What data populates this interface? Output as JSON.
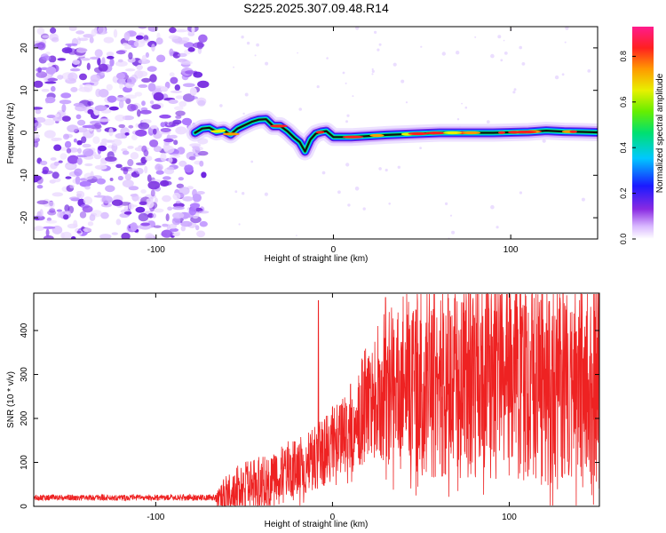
{
  "title": "S225.2025.307.09.48.R14",
  "colors": {
    "snr_line": "#ee2222",
    "scatter_purple": "#7a2fe0",
    "axis": "#000000"
  },
  "chart_data": [
    {
      "type": "heatmap",
      "name": "spectrogram",
      "xlabel": "Height of straight line (km)",
      "ylabel": "Frequency (Hz)",
      "xlim": [
        -169,
        149
      ],
      "ylim": [
        -25,
        25
      ],
      "xticks": [
        -100,
        0,
        100
      ],
      "xtick_labels": [
        "-100",
        "0",
        "100"
      ],
      "yticks": [
        -20,
        -10,
        0,
        10,
        20
      ],
      "ytick_labels": [
        "-20",
        "-10",
        "0",
        "10",
        "20"
      ],
      "noise_region_km": [
        -169,
        -75
      ],
      "ridge": {
        "x": [
          -78,
          -74,
          -70,
          -66,
          -62,
          -58,
          -54,
          -50,
          -46,
          -42,
          -38,
          -34,
          -30,
          -26,
          -22,
          -19,
          -16,
          -13,
          -10,
          -7,
          -4,
          0,
          10,
          30,
          60,
          90,
          110,
          120,
          130,
          140,
          149
        ],
        "freq": [
          0,
          1,
          1.2,
          0.3,
          0.6,
          -0.4,
          1.0,
          1.8,
          2.6,
          3.1,
          3.2,
          1.6,
          1.6,
          0.4,
          -1.2,
          -2.2,
          -4.4,
          -1.6,
          -0.2,
          0.2,
          0.4,
          -1.0,
          -1.0,
          -0.5,
          0.0,
          0.0,
          0.2,
          0.5,
          0.3,
          0.2,
          0.1
        ]
      },
      "colorbar": {
        "label": "Normalized spectral amplitude",
        "range": [
          0.0,
          0.93
        ],
        "ticks": [
          0.0,
          0.2,
          0.4,
          0.6,
          0.8
        ],
        "tick_labels": [
          "0.0",
          "0.2",
          "0.4",
          "0.6",
          "0.8"
        ]
      }
    },
    {
      "type": "line",
      "name": "snr",
      "xlabel": "Height of straight line (km)",
      "ylabel": "SNR (10 * v/v)",
      "xlim": [
        -169,
        151
      ],
      "ylim": [
        0,
        485
      ],
      "xticks": [
        -100,
        0,
        100
      ],
      "xtick_labels": [
        "-100",
        "0",
        "100"
      ],
      "yticks": [
        0,
        100,
        200,
        300,
        400
      ],
      "ytick_labels": [
        "0",
        "100",
        "200",
        "300",
        "400"
      ],
      "envelope": {
        "x": [
          -169,
          -66,
          -64,
          -55,
          -40,
          -20,
          -5,
          5,
          15,
          25,
          35,
          50,
          100,
          130,
          151
        ],
        "baseline": [
          20,
          20,
          35,
          60,
          80,
          120,
          160,
          200,
          260,
          330,
          370,
          390,
          400,
          390,
          380
        ],
        "noise_amp": [
          10,
          10,
          50,
          70,
          80,
          90,
          100,
          110,
          150,
          190,
          240,
          280,
          300,
          300,
          300
        ]
      },
      "spikes": [
        {
          "x": -8,
          "y": 468
        },
        {
          "x": 95,
          "y": 480
        },
        {
          "x": 30,
          "y": 475
        }
      ],
      "samples": 2200,
      "seed": 7
    }
  ]
}
